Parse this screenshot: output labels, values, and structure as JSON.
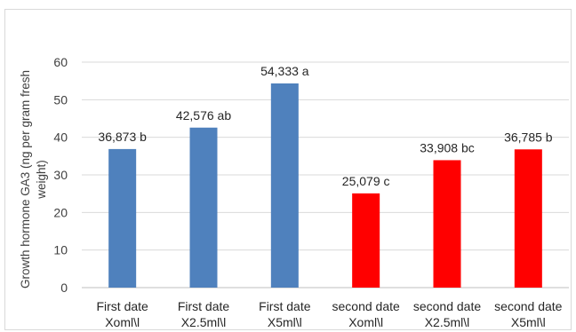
{
  "chart_data": {
    "type": "bar",
    "categories": [
      [
        "First date",
        "Xoml\\l"
      ],
      [
        "First date",
        "X2.5ml\\l"
      ],
      [
        "First date",
        "X5ml\\l"
      ],
      [
        "second date",
        "Xoml\\l"
      ],
      [
        "second date",
        "X2.5ml\\l"
      ],
      [
        "second date",
        "X5ml\\l"
      ]
    ],
    "values": [
      36.873,
      42.576,
      54.333,
      25.079,
      33.908,
      36.785
    ],
    "data_labels": [
      "36,873 b",
      "42,576 ab",
      "54,333 a",
      "25,079 c",
      "33,908  bc",
      "36,785 b"
    ],
    "bar_colors": [
      "#4f81bd",
      "#4f81bd",
      "#4f81bd",
      "#ff0000",
      "#ff0000",
      "#ff0000"
    ],
    "ylabel": [
      "Growth hormone GA3 (ng per gram fresh",
      "weight)"
    ],
    "ylim": [
      0,
      60
    ],
    "yticks": [
      0,
      10,
      20,
      30,
      40,
      50,
      60
    ],
    "grid": true,
    "title": ""
  }
}
